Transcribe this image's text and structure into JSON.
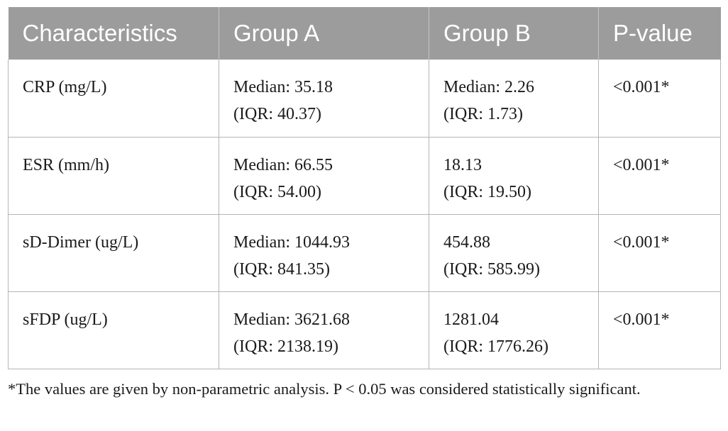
{
  "table": {
    "headers": [
      "Characteristics",
      "Group A",
      "Group B",
      "P-value"
    ],
    "rows": [
      {
        "characteristic": "CRP (mg/L)",
        "group_a": [
          "Median: 35.18",
          "(IQR: 40.37)"
        ],
        "group_b": [
          "Median: 2.26",
          "(IQR: 1.73)"
        ],
        "p_value": "<0.001*"
      },
      {
        "characteristic": "ESR (mm/h)",
        "group_a": [
          "Median: 66.55",
          "(IQR: 54.00)"
        ],
        "group_b": [
          "18.13",
          "(IQR: 19.50)"
        ],
        "p_value": "<0.001*"
      },
      {
        "characteristic": "sD-Dimer (ug/L)",
        "group_a": [
          "Median: 1044.93",
          "(IQR: 841.35)"
        ],
        "group_b": [
          "454.88",
          "(IQR: 585.99)"
        ],
        "p_value": "<0.001*"
      },
      {
        "characteristic": "sFDP (ug/L)",
        "group_a": [
          "Median: 3621.68",
          "(IQR: 2138.19)"
        ],
        "group_b": [
          "1281.04",
          "(IQR: 1776.26)"
        ],
        "p_value": "<0.001*"
      }
    ]
  },
  "footnote": "*The values are given by non-parametric analysis. P < 0.05 was considered statistically significant.",
  "colors": {
    "header_background": "#9c9c9c",
    "header_text": "#ffffff",
    "cell_border": "#b5b5b5"
  }
}
